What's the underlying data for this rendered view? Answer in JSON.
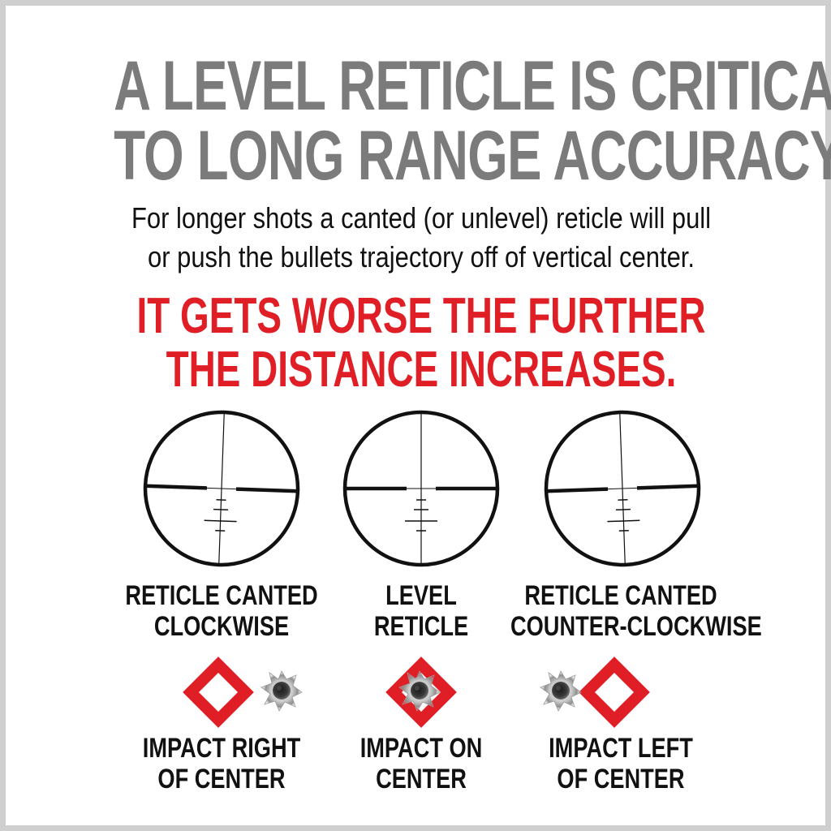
{
  "headline": {
    "line1": "A LEVEL RETICLE IS CRITICAL",
    "line2": "TO LONG RANGE ACCURACY."
  },
  "subtext": {
    "line1": "For longer shots a canted (or unlevel) reticle will pull",
    "line2": "or push the bullets trajectory off of vertical center."
  },
  "emphasis": {
    "line1": "IT GETS WORSE THE FURTHER",
    "line2": "THE DISTANCE INCREASES."
  },
  "reticles": [
    {
      "label_line1": "RETICLE CANTED",
      "label_line2": "CLOCKWISE",
      "cant_deg": 2,
      "impact_label_line1": "IMPACT RIGHT",
      "impact_label_line2": "OF CENTER",
      "impact": "right-of-center"
    },
    {
      "label_line1": "LEVEL",
      "label_line2": "RETICLE",
      "cant_deg": 0,
      "impact_label_line1": "IMPACT ON",
      "impact_label_line2": "CENTER",
      "impact": "on-center"
    },
    {
      "label_line1": "RETICLE CANTED",
      "label_line2": "COUNTER-CLOCKWISE",
      "cant_deg": -2,
      "impact_label_line1": "IMPACT LEFT",
      "impact_label_line2": "OF CENTER",
      "impact": "left-of-center"
    }
  ],
  "colors": {
    "headline": "#7b7b7b",
    "emphasis": "#e01e26",
    "text": "#111111",
    "target": "#e01e26",
    "frame": "#cfcfcf"
  },
  "icons": {
    "reticle": "scope-reticle-icon",
    "target": "diamond-target-icon",
    "impact": "bullet-hole-icon"
  }
}
